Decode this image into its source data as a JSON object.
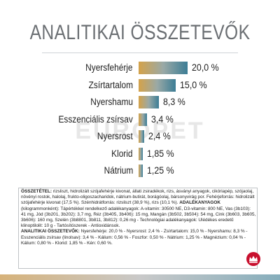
{
  "title": "ANALITIKAI ÖSSZETEVŐK",
  "chart_data": {
    "type": "bar",
    "categories": [
      "Nyersfehérje",
      "Zsírtartalom",
      "Nyershamu",
      "Esszenciális zsírsav",
      "Nyersrost",
      "Klorid",
      "Nátrium"
    ],
    "values": [
      20.0,
      15.0,
      8.3,
      3.4,
      2.4,
      1.85,
      1.25
    ],
    "value_labels": [
      "20,0 %",
      "15,0 %",
      "8,3 %",
      "3,4 %",
      "2,4 %",
      "1,85 %",
      "1,25 %"
    ],
    "title": "ANALITIKAI ÖSSZETEVŐK",
    "xlabel": "",
    "ylabel": "",
    "xlim": [
      0,
      20
    ]
  },
  "colors": {
    "title": "#6b6f73",
    "bar_start": "#d4a24a",
    "bar_end": "#3c7d95",
    "brand": "#c8102e"
  },
  "watermark": "EUROPET",
  "details": {
    "composition_heading": "ÖSSZETÉTEL:",
    "composition_text": "rizsliszt, hidrolizált szójafehérje kivonat, állati zsiradékok, rizs, ásványi anyagok, cikóriapép, szójaolaj, növényi rostok, halolaj, frukto-oligoszacharidok, nátrium-butirát, borágóolaj, bársonyvirág por. Fehérjeforrás: hidrolizált szójafehérje kivonat (17,5 %). Szénhidrátforrás: rizsliszt (38,9 %), rizs (10,1 %).",
    "additives_heading": "ADALÉKANYAGOK",
    "additives_text": "(kilogrammonként): Tápértékkel rendelkező adalékanyagok: A-vitamin: 30500 NE, D3-vitamin: 800 NE, Vas (3b103): 41 mg, Jód (3b201, 3b202): 3,7 mg, Réz (3b405, 3b406): 15 mg, Mangán (3b502, 3b504): 54 mg, Cink (3b603, 3b605, 3b606): 160 mg, Szelén (3b8801, 3b811, 3b812): 0,26 mg - Technológiai adalékanyagok: Ulédékes eredetű klinoptilolit: 10 g - Tartósítószerek - Antioxidánsok.",
    "analytic_heading": "ANALITIKAI ÖSSZETEVŐK:",
    "analytic_text": "Nyersfehérje: 20,0 % - Nyersrost: 2,4 % - Zsírtartalom: 15,0 % - Nyershamu: 8,3 % - Esszenciális zsírsav (linolsav): 3,4 % - Kálium: 0,56 % - Foszfor: 0,50 % - Nátrium: 1,25 % - Magnézium: 0,04 % - Kálium: 0,80 % - Klorid: 1,85 % - Kén: 0,60 %."
  },
  "logo_icon": "royal-canin-crown-icon"
}
